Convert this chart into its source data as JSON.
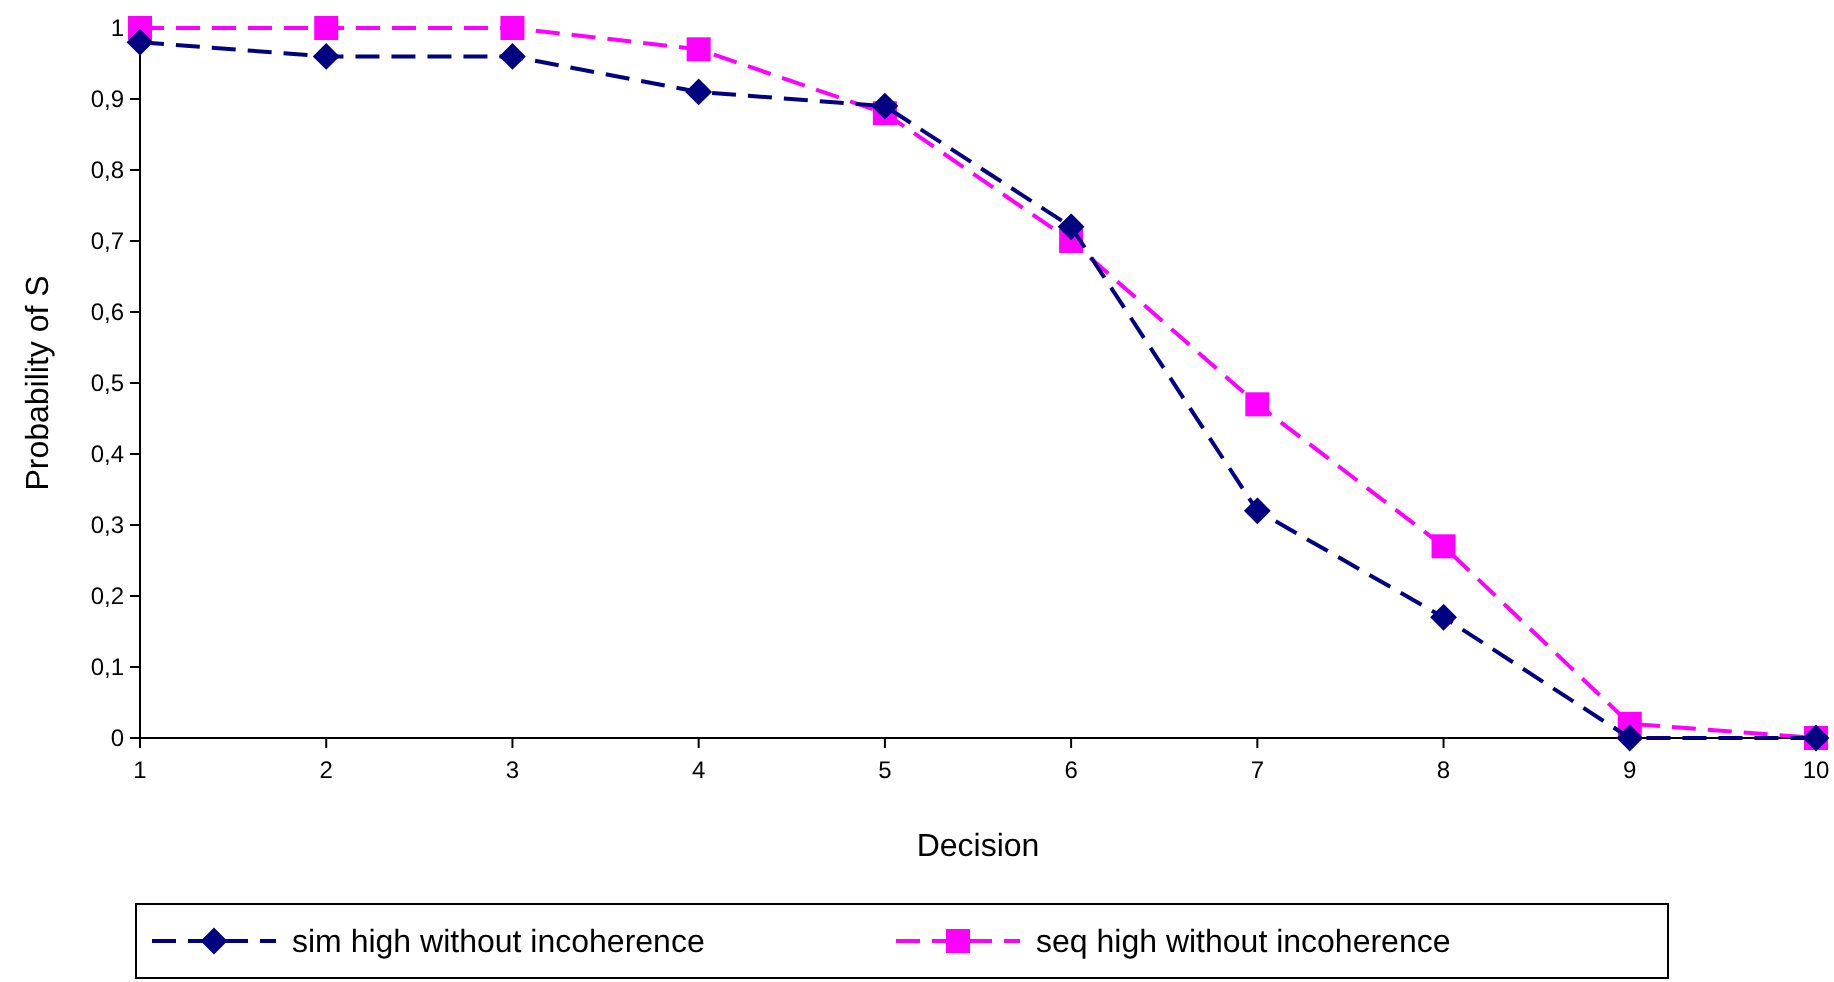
{
  "chart_data": {
    "type": "line",
    "xlabel": "Decision",
    "ylabel": "Probability of S",
    "x": [
      1,
      2,
      3,
      4,
      5,
      6,
      7,
      8,
      9,
      10
    ],
    "xlim": [
      1,
      10
    ],
    "xticks": [
      1,
      2,
      3,
      4,
      5,
      6,
      7,
      8,
      9,
      10
    ],
    "ylim": [
      0,
      1
    ],
    "yticks": [
      0,
      {
        "value": 0.1,
        "label": "0,1"
      },
      {
        "value": 0.2,
        "label": "0,2"
      },
      {
        "value": 0.3,
        "label": "0,3"
      },
      {
        "value": 0.4,
        "label": "0,4"
      },
      {
        "value": 0.5,
        "label": "0,5"
      },
      {
        "value": 0.6,
        "label": "0,6"
      },
      {
        "value": 0.7,
        "label": "0,7"
      },
      {
        "value": 0.8,
        "label": "0,8"
      },
      {
        "value": 0.9,
        "label": "0,9"
      },
      1
    ],
    "grid": false,
    "legend": "bottom",
    "line_style": "dashed",
    "series": [
      {
        "name": "sim high without incoherence",
        "color": "#000080",
        "marker": "diamond",
        "values": [
          0.98,
          0.96,
          0.96,
          0.91,
          0.89,
          0.72,
          0.32,
          0.17,
          0,
          0
        ]
      },
      {
        "name": "seq high without incoherence",
        "color": "#ff00ff",
        "marker": "square",
        "values": [
          1,
          1,
          1,
          0.97,
          0.88,
          0.7,
          0.47,
          0.27,
          0.02,
          0
        ]
      }
    ]
  }
}
